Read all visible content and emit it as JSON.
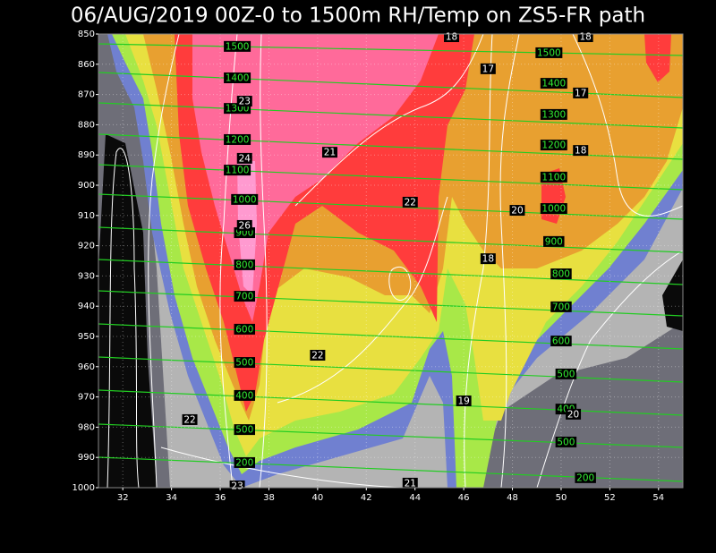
{
  "chart_data": {
    "type": "cross-section",
    "title": "06/AUG/2019 00Z-0 to 1500m RH/Temp on ZS5-FR path",
    "xlim": [
      31,
      55
    ],
    "xticks": [
      32,
      34,
      36,
      38,
      40,
      42,
      44,
      46,
      48,
      50,
      52,
      54
    ],
    "ylim": [
      850,
      1000
    ],
    "yticks": [
      850,
      860,
      870,
      880,
      890,
      900,
      910,
      920,
      930,
      940,
      950,
      960,
      970,
      980,
      990,
      1000
    ],
    "y_inverted": true,
    "grid": true,
    "height_labels": [
      {
        "text": "1500",
        "x": 36.7,
        "y": 854.1
      },
      {
        "text": "1400",
        "x": 36.7,
        "y": 864.5
      },
      {
        "text": "1300",
        "x": 36.7,
        "y": 874.6
      },
      {
        "text": "1200",
        "x": 36.7,
        "y": 884.9
      },
      {
        "text": "1100",
        "x": 36.7,
        "y": 895.0
      },
      {
        "text": "1000",
        "x": 37.0,
        "y": 904.7
      },
      {
        "text": "900",
        "x": 37.0,
        "y": 915.7
      },
      {
        "text": "800",
        "x": 37.0,
        "y": 926.3
      },
      {
        "text": "700",
        "x": 37.0,
        "y": 936.7
      },
      {
        "text": "600",
        "x": 37.0,
        "y": 947.6
      },
      {
        "text": "500",
        "x": 37.0,
        "y": 958.6
      },
      {
        "text": "400",
        "x": 37.0,
        "y": 969.5
      },
      {
        "text": "500",
        "x": 37.0,
        "y": 980.8
      },
      {
        "text": "200",
        "x": 37.0,
        "y": 991.7
      },
      {
        "text": "1500",
        "x": 49.5,
        "y": 856.2
      },
      {
        "text": "1400",
        "x": 49.7,
        "y": 866.3
      },
      {
        "text": "1300",
        "x": 49.7,
        "y": 876.6
      },
      {
        "text": "1200",
        "x": 49.7,
        "y": 886.7
      },
      {
        "text": "1100",
        "x": 49.7,
        "y": 897.3
      },
      {
        "text": "1000",
        "x": 49.7,
        "y": 907.7
      },
      {
        "text": "900",
        "x": 49.7,
        "y": 918.6
      },
      {
        "text": "800",
        "x": 50.0,
        "y": 929.3
      },
      {
        "text": "700",
        "x": 50.0,
        "y": 940.2
      },
      {
        "text": "600",
        "x": 50.0,
        "y": 951.5
      },
      {
        "text": "500",
        "x": 50.2,
        "y": 962.4
      },
      {
        "text": "400",
        "x": 50.2,
        "y": 974.0
      },
      {
        "text": "500",
        "x": 50.2,
        "y": 984.9
      },
      {
        "text": "200",
        "x": 51.0,
        "y": 996.7
      }
    ],
    "temperature_labels": [
      {
        "text": "18",
        "x": 45.5,
        "y": 850.9
      },
      {
        "text": "18",
        "x": 51.0,
        "y": 850.9
      },
      {
        "text": "17",
        "x": 47.0,
        "y": 861.5
      },
      {
        "text": "17",
        "x": 50.8,
        "y": 869.5
      },
      {
        "text": "23",
        "x": 37.0,
        "y": 872.2
      },
      {
        "text": "24",
        "x": 37.0,
        "y": 891.1
      },
      {
        "text": "21",
        "x": 40.5,
        "y": 889.1
      },
      {
        "text": "18",
        "x": 50.8,
        "y": 888.5
      },
      {
        "text": "22",
        "x": 43.8,
        "y": 905.6
      },
      {
        "text": "20",
        "x": 48.2,
        "y": 908.3
      },
      {
        "text": "26",
        "x": 37.0,
        "y": 913.3
      },
      {
        "text": "18",
        "x": 47.0,
        "y": 924.3
      },
      {
        "text": "22",
        "x": 40.0,
        "y": 956.2
      },
      {
        "text": "19",
        "x": 46.0,
        "y": 971.3
      },
      {
        "text": "20",
        "x": 50.5,
        "y": 975.7
      },
      {
        "text": "22",
        "x": 34.75,
        "y": 977.5
      },
      {
        "text": "21",
        "x": 43.8,
        "y": 998.5
      },
      {
        "text": "23",
        "x": 36.7,
        "y": 999.4
      }
    ]
  }
}
